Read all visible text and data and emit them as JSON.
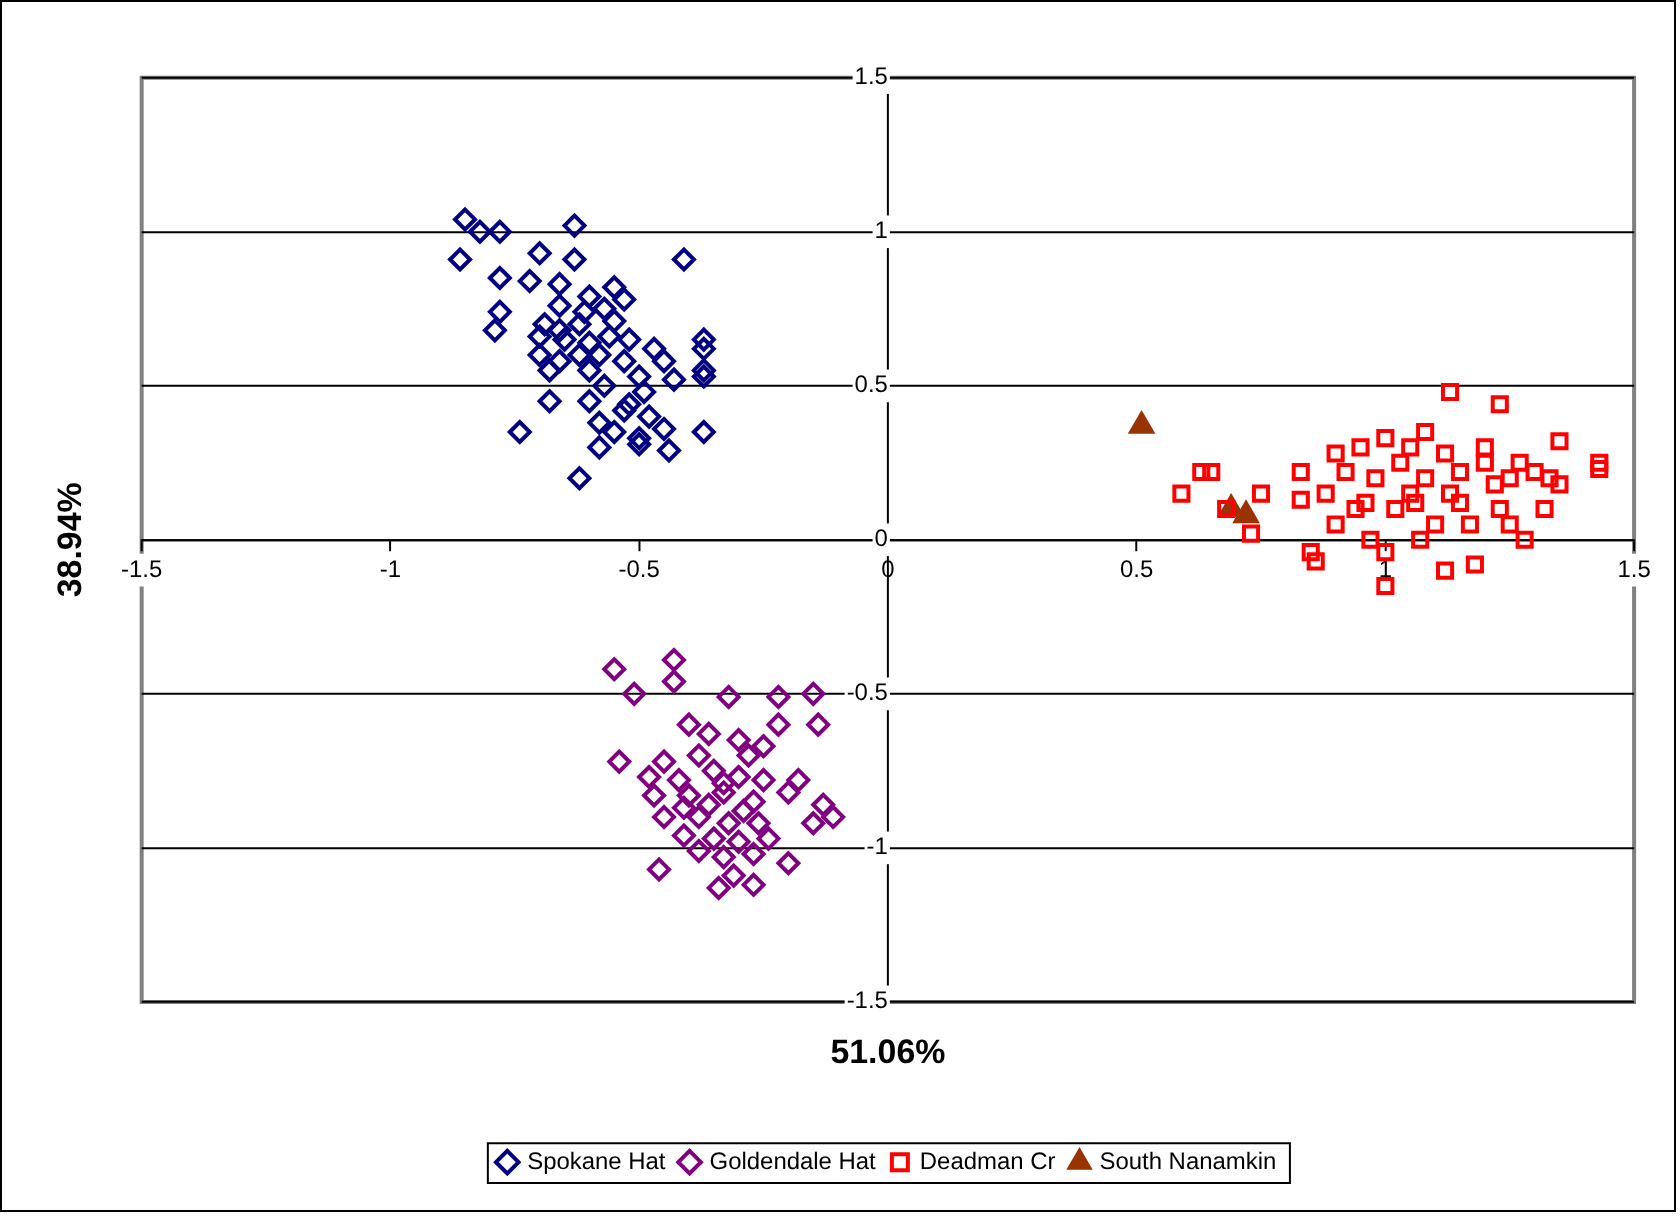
{
  "chart_data": {
    "type": "scatter",
    "xlabel": "51.06%",
    "ylabel": "38.94%",
    "xlim": [
      -1.5,
      1.5
    ],
    "ylim": [
      -1.5,
      1.5
    ],
    "xticks": [
      -1.5,
      -1,
      -0.5,
      0,
      0.5,
      1,
      1.5
    ],
    "yticks": [
      -1.5,
      -1,
      -0.5,
      0,
      0.5,
      1,
      1.5
    ],
    "grid": "y",
    "legend": "bottom",
    "series": [
      {
        "name": "Spokane Hat",
        "color": "#000080",
        "marker": "diamond",
        "x": [
          -0.85,
          -0.82,
          -0.78,
          -0.63,
          -0.86,
          -0.7,
          -0.63,
          -0.41,
          -0.78,
          -0.72,
          -0.66,
          -0.6,
          -0.55,
          -0.53,
          -0.57,
          -0.78,
          -0.66,
          -0.69,
          -0.62,
          -0.55,
          -0.79,
          -0.7,
          -0.65,
          -0.6,
          -0.52,
          -0.47,
          -0.37,
          -0.37,
          -0.7,
          -0.66,
          -0.62,
          -0.58,
          -0.53,
          -0.45,
          -0.37,
          -0.37,
          -0.68,
          -0.6,
          -0.5,
          -0.57,
          -0.49,
          -0.43,
          -0.68,
          -0.6,
          -0.53,
          -0.48,
          -0.58,
          -0.55,
          -0.5,
          -0.45,
          -0.74,
          -0.58,
          -0.5,
          -0.44,
          -0.37,
          -0.62,
          -0.61,
          -0.56,
          -0.52,
          -0.66
        ],
        "values": [
          1.04,
          1.0,
          1.0,
          1.02,
          0.91,
          0.93,
          0.91,
          0.91,
          0.85,
          0.84,
          0.83,
          0.79,
          0.82,
          0.78,
          0.75,
          0.74,
          0.76,
          0.7,
          0.7,
          0.71,
          0.68,
          0.66,
          0.65,
          0.64,
          0.65,
          0.62,
          0.65,
          0.62,
          0.6,
          0.58,
          0.6,
          0.6,
          0.58,
          0.58,
          0.55,
          0.53,
          0.55,
          0.55,
          0.53,
          0.5,
          0.48,
          0.52,
          0.45,
          0.45,
          0.42,
          0.4,
          0.38,
          0.35,
          0.33,
          0.36,
          0.35,
          0.3,
          0.31,
          0.29,
          0.35,
          0.2,
          0.74,
          0.66,
          0.44,
          0.68
        ]
      },
      {
        "name": "Goldendale Hat",
        "color": "#800080",
        "marker": "diamond",
        "x": [
          -0.55,
          -0.43,
          -0.51,
          -0.43,
          -0.32,
          -0.22,
          -0.15,
          -0.14,
          -0.22,
          -0.4,
          -0.36,
          -0.3,
          -0.25,
          -0.54,
          -0.45,
          -0.38,
          -0.28,
          -0.48,
          -0.42,
          -0.35,
          -0.3,
          -0.25,
          -0.18,
          -0.47,
          -0.4,
          -0.33,
          -0.27,
          -0.2,
          -0.11,
          -0.13,
          -0.45,
          -0.38,
          -0.32,
          -0.26,
          -0.15,
          -0.41,
          -0.35,
          -0.3,
          -0.24,
          -0.38,
          -0.33,
          -0.27,
          -0.46,
          -0.2,
          -0.31,
          -0.34,
          -0.27,
          -0.36,
          -0.29,
          -0.41,
          -0.33
        ],
        "values": [
          -0.42,
          -0.39,
          -0.5,
          -0.46,
          -0.51,
          -0.51,
          -0.5,
          -0.6,
          -0.6,
          -0.6,
          -0.63,
          -0.65,
          -0.67,
          -0.72,
          -0.72,
          -0.7,
          -0.7,
          -0.77,
          -0.78,
          -0.75,
          -0.77,
          -0.78,
          -0.78,
          -0.83,
          -0.83,
          -0.82,
          -0.85,
          -0.82,
          -0.9,
          -0.86,
          -0.9,
          -0.9,
          -0.92,
          -0.92,
          -0.92,
          -0.96,
          -0.97,
          -0.98,
          -0.97,
          -1.01,
          -1.03,
          -1.02,
          -1.07,
          -1.05,
          -1.09,
          -1.13,
          -1.12,
          -0.86,
          -0.88,
          -0.87,
          -0.79
        ]
      },
      {
        "name": "Deadman Cr",
        "color": "#ff0000",
        "marker": "square",
        "x": [
          0.59,
          0.63,
          0.65,
          0.68,
          0.75,
          0.73,
          0.83,
          0.83,
          0.85,
          0.86,
          0.88,
          0.9,
          0.9,
          0.92,
          0.94,
          0.95,
          0.97,
          0.98,
          1.0,
          1.0,
          1.0,
          1.02,
          1.03,
          1.05,
          1.05,
          1.07,
          1.08,
          1.08,
          1.1,
          1.12,
          1.12,
          1.13,
          1.13,
          1.15,
          1.17,
          1.18,
          1.2,
          1.2,
          1.22,
          1.23,
          1.23,
          1.25,
          1.27,
          1.28,
          1.3,
          1.32,
          1.33,
          1.35,
          1.35,
          1.43,
          1.43,
          1.06,
          0.96,
          1.15,
          1.25
        ],
        "values": [
          0.15,
          0.22,
          0.22,
          0.1,
          0.15,
          0.02,
          0.22,
          0.13,
          -0.04,
          -0.07,
          0.15,
          0.28,
          0.05,
          0.22,
          0.1,
          0.3,
          0.0,
          0.2,
          0.33,
          -0.04,
          -0.15,
          0.1,
          0.25,
          0.3,
          0.15,
          0.0,
          0.35,
          0.2,
          0.05,
          -0.1,
          0.28,
          0.48,
          0.15,
          0.22,
          0.05,
          -0.08,
          0.25,
          0.3,
          0.18,
          0.1,
          0.44,
          0.2,
          0.25,
          0.0,
          0.22,
          0.1,
          0.2,
          0.32,
          0.18,
          0.23,
          0.25,
          0.12,
          0.12,
          0.12,
          0.05
        ]
      },
      {
        "name": "South Nanamkin",
        "color": "#993300",
        "marker": "triangle",
        "x": [
          0.51,
          0.69,
          0.72
        ],
        "values": [
          0.37,
          0.1,
          0.08
        ]
      }
    ]
  }
}
